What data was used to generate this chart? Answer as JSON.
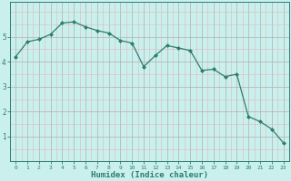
{
  "x": [
    0,
    1,
    2,
    3,
    4,
    5,
    6,
    7,
    8,
    9,
    10,
    11,
    12,
    13,
    14,
    15,
    16,
    17,
    18,
    19,
    20,
    21,
    22,
    23
  ],
  "y": [
    4.2,
    4.8,
    4.9,
    5.1,
    5.55,
    5.6,
    5.4,
    5.25,
    5.15,
    4.85,
    4.75,
    3.8,
    4.25,
    4.65,
    4.55,
    4.45,
    3.65,
    3.7,
    3.4,
    3.5,
    1.8,
    1.6,
    1.3,
    0.75
  ],
  "line_color": "#2d7d6d",
  "bg_color": "#caf0ee",
  "grid_color_major": "#b0b0b0",
  "grid_color_minor": "#e0b8b8",
  "xlabel": "Humidex (Indice chaleur)",
  "ylim": [
    0,
    6.4
  ],
  "xlim": [
    -0.5,
    23.5
  ],
  "yticks": [
    1,
    2,
    3,
    4,
    5
  ],
  "xticks": [
    0,
    1,
    2,
    3,
    4,
    5,
    6,
    7,
    8,
    9,
    10,
    11,
    12,
    13,
    14,
    15,
    16,
    17,
    18,
    19,
    20,
    21,
    22,
    23
  ],
  "axis_color": "#2d7d6d",
  "tick_color": "#2d7d6d",
  "label_color": "#2d7d6d"
}
